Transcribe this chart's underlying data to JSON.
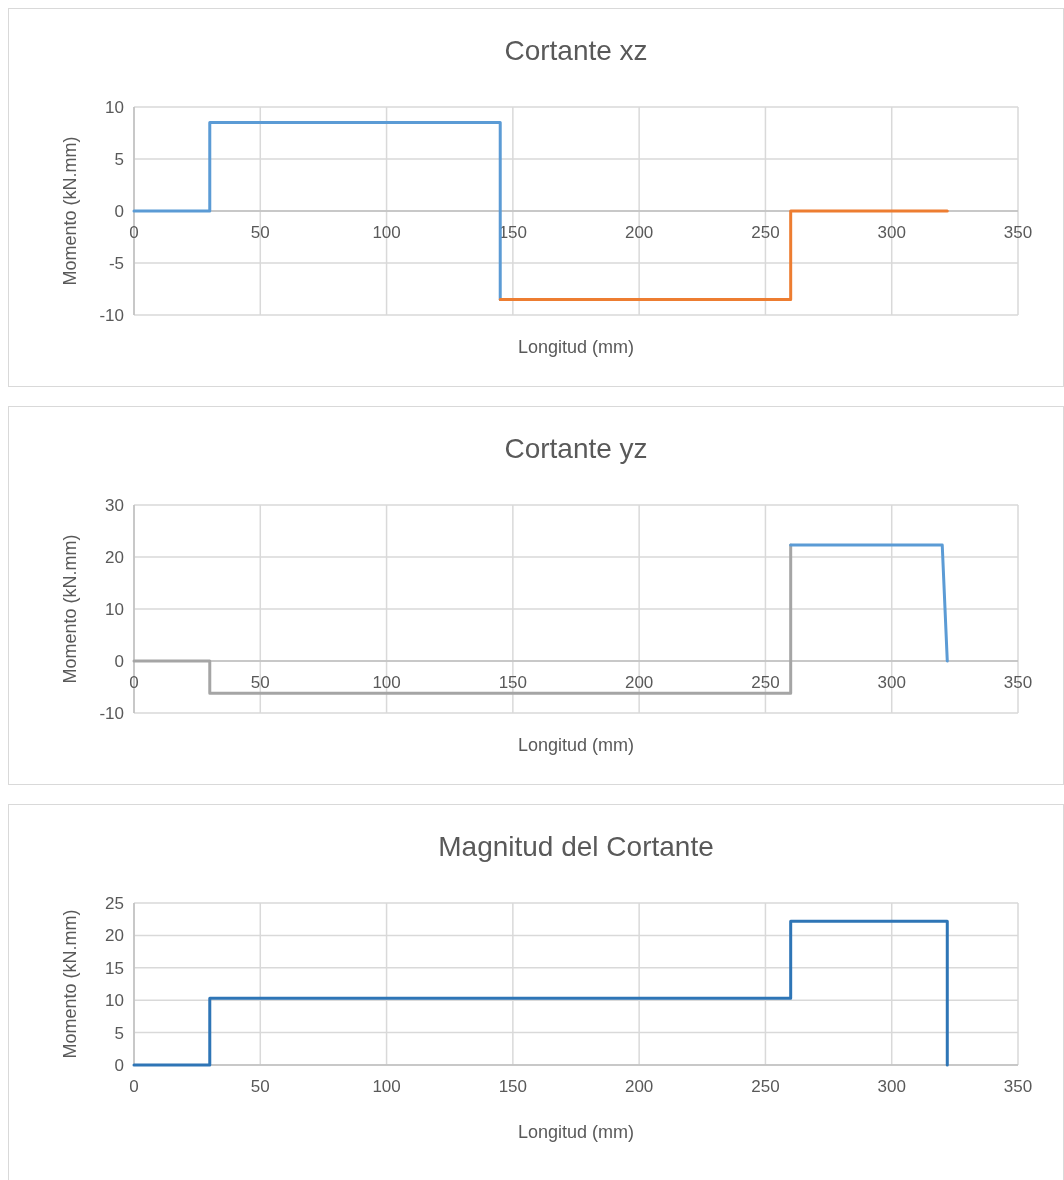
{
  "chart_data": [
    {
      "type": "line",
      "title": "Cortante xz",
      "xlabel": "Longitud (mm)",
      "ylabel": "Momento (kN.mm)",
      "xlim": [
        0,
        350
      ],
      "xticks": [
        0,
        50,
        100,
        150,
        200,
        250,
        300,
        350
      ],
      "ylim": [
        -10,
        10
      ],
      "yticks": [
        -10,
        -5,
        0,
        5,
        10
      ],
      "grid": true,
      "marker": "none",
      "line_style": "solid",
      "series": [
        {
          "color": "#5b9bd5",
          "x": [
            0,
            30,
            30,
            145,
            145
          ],
          "values": [
            0,
            0,
            8.5,
            8.5,
            -8.5
          ]
        },
        {
          "color": "#ed7d31",
          "x": [
            145,
            260,
            260,
            322
          ],
          "values": [
            -8.5,
            -8.5,
            0,
            0
          ]
        }
      ]
    },
    {
      "type": "line",
      "title": "Cortante yz",
      "xlabel": "Longitud (mm)",
      "ylabel": "Momento (kN.mm)",
      "xlim": [
        0,
        350
      ],
      "xticks": [
        0,
        50,
        100,
        150,
        200,
        250,
        300,
        350
      ],
      "ylim": [
        -10,
        30
      ],
      "yticks": [
        -10,
        0,
        10,
        20,
        30
      ],
      "grid": true,
      "marker": "none",
      "line_style": "solid",
      "series": [
        {
          "color": "#a5a5a5",
          "x": [
            0,
            30,
            30,
            260,
            260
          ],
          "values": [
            0,
            0,
            -6.2,
            -6.2,
            22.3
          ]
        },
        {
          "color": "#5b9bd5",
          "x": [
            260,
            320,
            322
          ],
          "values": [
            22.3,
            22.3,
            0
          ]
        }
      ]
    },
    {
      "type": "line",
      "title": "Magnitud del Cortante",
      "xlabel": "Longitud (mm)",
      "ylabel": "Momento (kN.mm)",
      "xlim": [
        0,
        350
      ],
      "xticks": [
        0,
        50,
        100,
        150,
        200,
        250,
        300,
        350
      ],
      "ylim": [
        0,
        25
      ],
      "yticks": [
        0,
        5,
        10,
        15,
        20,
        25
      ],
      "grid": true,
      "marker": "none",
      "line_style": "solid",
      "series": [
        {
          "color": "#2e75b6",
          "x": [
            0,
            30,
            30,
            260,
            260,
            322,
            322
          ],
          "values": [
            0,
            0,
            10.3,
            10.3,
            22.2,
            22.2,
            0
          ]
        }
      ]
    }
  ]
}
